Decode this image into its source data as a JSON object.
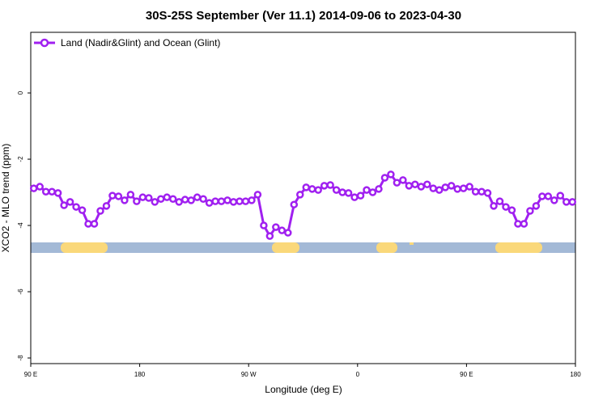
{
  "chart_data": {
    "type": "line",
    "title": "30S-25S September (Ver 11.1)   2014-09-06 to 2023-04-30",
    "x_label": "Longitude (deg E)",
    "y_label": "XCO2 - MLO trend (ppm)",
    "xlim": [
      90,
      540
    ],
    "ylim": [
      -8.17,
      1.83
    ],
    "xticks": [
      {
        "value": 90,
        "label": "90 E"
      },
      180,
      {
        "value": 270,
        "label": "90 W"
      },
      {
        "value": 360,
        "label": "0"
      },
      {
        "value": 450,
        "label": "90 E"
      },
      {
        "value": 540,
        "label": "180"
      }
    ],
    "yticks": [
      0,
      -2,
      -4,
      -6,
      -8
    ],
    "x": [
      92.5,
      97.5,
      102.5,
      107.5,
      112.5,
      117.5,
      122.5,
      127.5,
      132.5,
      137.5,
      142.5,
      147.5,
      152.5,
      157.5,
      162.5,
      167.5,
      172.5,
      177.5,
      182.5,
      187.5,
      192.5,
      197.5,
      202.5,
      207.5,
      212.5,
      217.5,
      222.5,
      227.5,
      232.5,
      237.5,
      242.5,
      247.5,
      252.5,
      257.5,
      262.5,
      267.5,
      272.5,
      277.5,
      282.5,
      287.5,
      292.5,
      297.5,
      302.5,
      307.5,
      312.5,
      317.5,
      322.5,
      327.5,
      332.5,
      337.5,
      342.5,
      347.5,
      352.5,
      357.5,
      362.5,
      367.5,
      372.5,
      377.5,
      382.5,
      387.5,
      392.5,
      397.5,
      402.5,
      407.5,
      412.5,
      417.5,
      422.5,
      427.5,
      432.5,
      437.5,
      442.5,
      447.5,
      452.5,
      457.5,
      462.5,
      467.5,
      472.5,
      477.5,
      482.5,
      487.5,
      492.5,
      497.5,
      502.5,
      507.5,
      512.5,
      517.5,
      522.5,
      527.5,
      532.5,
      537.5
    ],
    "series": [
      {
        "name": "Land (Nadir&Glint) and Ocean (Glint)",
        "color": "#a020f0",
        "values": [
          -2.88,
          -2.83,
          -2.98,
          -2.98,
          -3.02,
          -3.39,
          -3.29,
          -3.44,
          -3.54,
          -3.95,
          -3.95,
          -3.56,
          -3.41,
          -3.1,
          -3.12,
          -3.24,
          -3.07,
          -3.27,
          -3.15,
          -3.17,
          -3.29,
          -3.2,
          -3.15,
          -3.2,
          -3.29,
          -3.22,
          -3.24,
          -3.15,
          -3.2,
          -3.32,
          -3.27,
          -3.27,
          -3.24,
          -3.29,
          -3.27,
          -3.27,
          -3.24,
          -3.07,
          -4.0,
          -4.32,
          -4.05,
          -4.15,
          -4.22,
          -3.37,
          -3.07,
          -2.85,
          -2.9,
          -2.93,
          -2.8,
          -2.78,
          -2.93,
          -3.0,
          -3.02,
          -3.15,
          -3.1,
          -2.93,
          -3.0,
          -2.9,
          -2.56,
          -2.46,
          -2.71,
          -2.63,
          -2.8,
          -2.76,
          -2.83,
          -2.76,
          -2.88,
          -2.93,
          -2.85,
          -2.8,
          -2.9,
          -2.88,
          -2.83,
          -2.98,
          -2.98,
          -3.02,
          -3.41,
          -3.27,
          -3.44,
          -3.54,
          -3.95,
          -3.95,
          -3.56,
          -3.41,
          -3.12,
          -3.12,
          -3.24,
          -3.1,
          -3.29,
          -3.29
        ]
      }
    ]
  }
}
